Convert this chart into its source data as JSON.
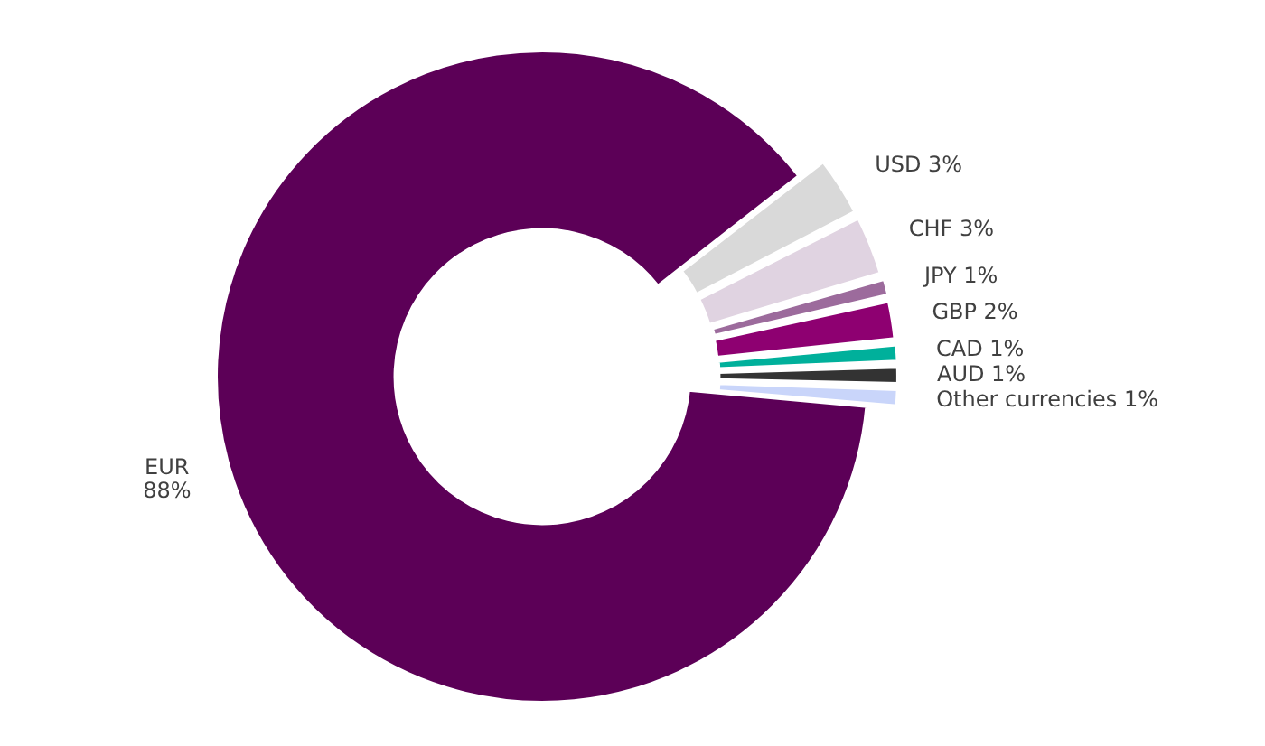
{
  "chart_data": {
    "type": "donut",
    "categories": [
      "USD",
      "CHF",
      "JPY",
      "GBP",
      "CAD",
      "AUD",
      "Other currencies",
      "EUR"
    ],
    "values": [
      3,
      3,
      1,
      2,
      1,
      1,
      1,
      88
    ],
    "colors": [
      "#d9d9d9",
      "#e0d3e1",
      "#9c6b9c",
      "#8e0071",
      "#00b09b",
      "#333333",
      "#c9d5fa",
      "#5c0057"
    ],
    "value_labels": [
      "3%",
      "3%",
      "1%",
      "2%",
      "1%",
      "1%",
      "1%",
      "88%"
    ],
    "legend": false
  }
}
